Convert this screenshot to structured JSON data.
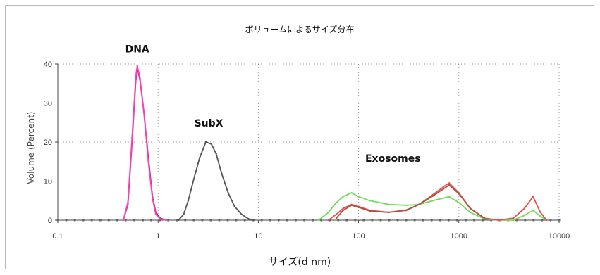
{
  "chart_data": {
    "type": "line",
    "title": "ボリュームによるサイズ分布",
    "xlabel": "サイズ(d nm)",
    "ylabel": "Volume (Percent)",
    "xscale": "log",
    "xlim": [
      0.1,
      10000
    ],
    "ylim": [
      0,
      40
    ],
    "xticks": [
      0.1,
      1,
      10,
      100,
      1000,
      10000
    ],
    "xtick_labels": [
      "0.1",
      "1",
      "10",
      "100",
      "1000",
      "10000"
    ],
    "yticks": [
      0,
      10,
      20,
      30,
      40
    ],
    "ytick_labels": [
      "0",
      "10",
      "20",
      "30",
      "40"
    ],
    "grid": true,
    "legend": "none",
    "annotations": [
      {
        "text": "DNA",
        "x": 0.62,
        "y": 43
      },
      {
        "text": "SubX",
        "x": 3.2,
        "y": 24
      },
      {
        "text": "Exosomes",
        "x": 220,
        "y": 15
      }
    ],
    "series": [
      {
        "color": "#8a1fb0",
        "x": [
          0.45,
          0.5,
          0.55,
          0.6,
          0.62,
          0.66,
          0.72,
          0.8,
          0.88,
          0.95,
          1.05,
          1.2
        ],
        "y": [
          0,
          4,
          20,
          36,
          39,
          36,
          28,
          16,
          6,
          2,
          0.5,
          0
        ]
      },
      {
        "color": "#ff3fb0",
        "x": [
          0.45,
          0.5,
          0.55,
          0.6,
          0.62,
          0.66,
          0.72,
          0.8,
          0.88,
          0.95,
          1.05,
          1.2
        ],
        "y": [
          0,
          4.5,
          21,
          37,
          39.5,
          36.5,
          28,
          15,
          5.5,
          1.5,
          0.3,
          0
        ]
      },
      {
        "color": "#555555",
        "x": [
          1.6,
          1.8,
          2.0,
          2.3,
          2.6,
          3.0,
          3.4,
          3.8,
          4.3,
          5.0,
          5.8,
          6.8,
          8.0,
          9.0
        ],
        "y": [
          0,
          1.5,
          5,
          11,
          16,
          20,
          19.5,
          17,
          12,
          7,
          3.5,
          1.5,
          0.3,
          0
        ]
      },
      {
        "color": "#6edc5a",
        "x": [
          40,
          50,
          60,
          70,
          85,
          100,
          130,
          200,
          300,
          400,
          550,
          800,
          1000,
          1300,
          1800,
          2500,
          3500,
          4500,
          5500,
          6500,
          7500
        ],
        "y": [
          0,
          2,
          4.5,
          6,
          7,
          6,
          5,
          4,
          3.8,
          4,
          5,
          6,
          4.5,
          2,
          0.3,
          0,
          0,
          1.2,
          2.5,
          1,
          0
        ]
      },
      {
        "color": "#e85050",
        "x": [
          50,
          60,
          70,
          85,
          100,
          130,
          200,
          300,
          400,
          550,
          700,
          800,
          1000,
          1300,
          1800,
          2500,
          3500,
          4500,
          5500,
          6500,
          7500
        ],
        "y": [
          0,
          1.5,
          3,
          4,
          3.5,
          2.5,
          2,
          2.5,
          4,
          6.5,
          8.5,
          9.5,
          7,
          3,
          0.5,
          0,
          0.5,
          3,
          6,
          2,
          0
        ]
      },
      {
        "color": "#b0503a",
        "x": [
          60,
          70,
          85,
          100,
          130,
          200,
          300,
          400,
          550,
          700,
          800,
          1000,
          1300,
          1800
        ],
        "y": [
          0.5,
          2.5,
          3.8,
          3.3,
          2.3,
          2,
          2.6,
          4,
          6.2,
          8,
          9,
          6.8,
          3,
          0.5
        ]
      }
    ]
  }
}
